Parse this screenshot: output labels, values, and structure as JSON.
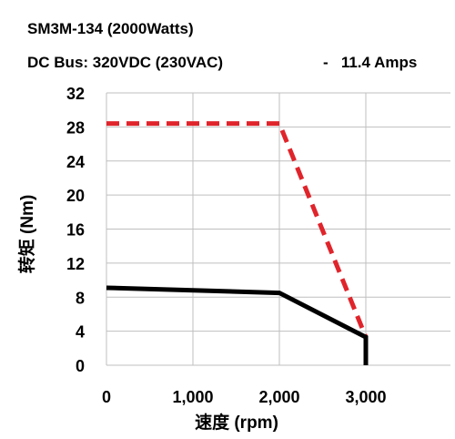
{
  "header": {
    "line1": "SM3M-134 (2000Watts)",
    "line2_left": "DC Bus: 320VDC (230VAC)",
    "line2_right": "-   11.4 Amps"
  },
  "chart_data": {
    "type": "line",
    "xlabel": "速度 (rpm)",
    "ylabel": "转矩 (Nm)",
    "xlim": [
      0,
      3000
    ],
    "ylim": [
      0,
      32
    ],
    "xticks": [
      0,
      1000,
      2000,
      3000
    ],
    "xtick_labels": [
      "0",
      "1,000",
      "2,000",
      "3,000"
    ],
    "yticks": [
      0,
      4,
      8,
      12,
      16,
      20,
      24,
      28,
      32
    ],
    "ytick_labels": [
      "0",
      "4",
      "8",
      "12",
      "16",
      "20",
      "24",
      "28",
      "32"
    ],
    "grid": true,
    "series": [
      {
        "style": "dashed",
        "color": "#e0242b",
        "x": [
          0,
          2000,
          3000
        ],
        "y": [
          28.4,
          28.4,
          3.3
        ]
      },
      {
        "style": "solid",
        "color": "#000000",
        "x": [
          0,
          2000,
          3000,
          3000
        ],
        "y": [
          9.1,
          8.5,
          3.3,
          0
        ]
      }
    ]
  }
}
